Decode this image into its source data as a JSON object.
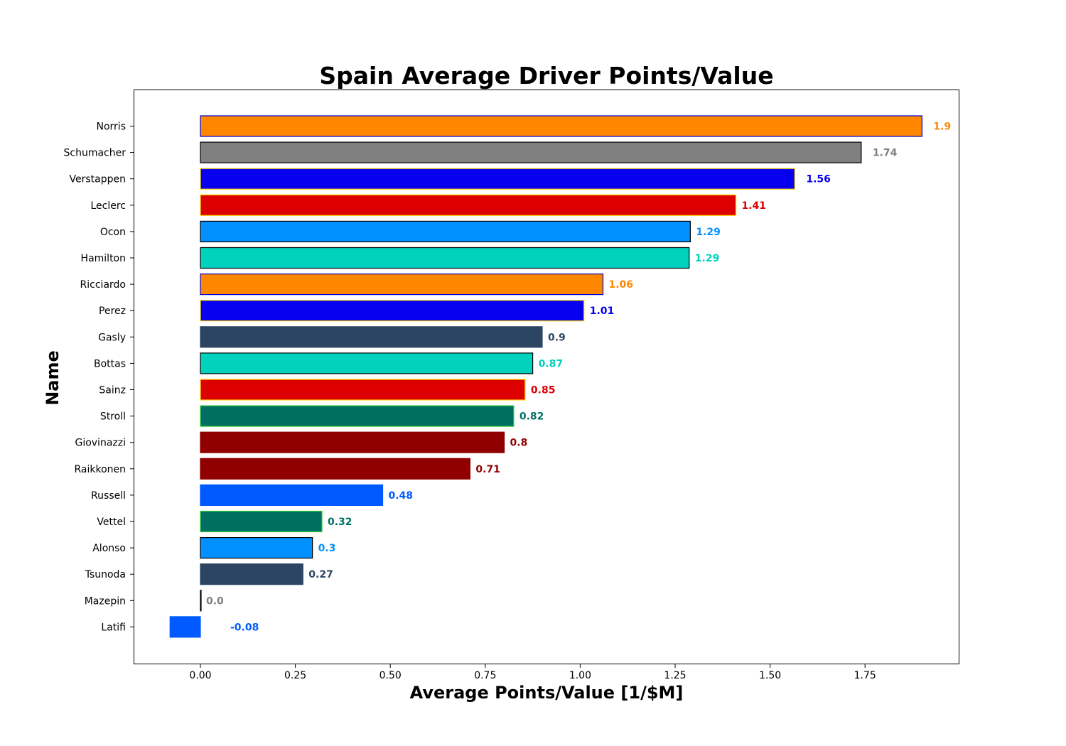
{
  "chart_data": {
    "type": "bar",
    "orientation": "horizontal",
    "title": "Spain Average Driver Points/Value",
    "xlabel": "Average Points/Value [1/$M]",
    "ylabel": "Name",
    "xlim": [
      -0.175,
      1.995
    ],
    "xticks": [
      "0.00",
      "0.25",
      "0.50",
      "0.75",
      "1.00",
      "1.25",
      "1.50",
      "1.75"
    ],
    "xtick_values": [
      0,
      0.25,
      0.5,
      0.75,
      1.0,
      1.25,
      1.5,
      1.75
    ],
    "grid": false,
    "bars": [
      {
        "name": "Norris",
        "value": 1.9,
        "label": "1.9",
        "fill": "#FF8700",
        "edge": "#0000CC",
        "text_color": "#FF8700"
      },
      {
        "name": "Schumacher",
        "value": 1.74,
        "label": "1.74",
        "fill": "#808080",
        "edge": "#000000",
        "text_color": "#808080"
      },
      {
        "name": "Verstappen",
        "value": 1.565,
        "label": "1.56",
        "fill": "#0600EF",
        "edge": "#FFD700",
        "text_color": "#0600EF"
      },
      {
        "name": "Leclerc",
        "value": 1.41,
        "label": "1.41",
        "fill": "#DC0000",
        "edge": "#FFD700",
        "text_color": "#DC0000"
      },
      {
        "name": "Ocon",
        "value": 1.29,
        "label": "1.29",
        "fill": "#0090FF",
        "edge": "#000000",
        "text_color": "#0090FF"
      },
      {
        "name": "Hamilton",
        "value": 1.287,
        "label": "1.29",
        "fill": "#00D2BE",
        "edge": "#000000",
        "text_color": "#00D2BE"
      },
      {
        "name": "Ricciardo",
        "value": 1.06,
        "label": "1.06",
        "fill": "#FF8700",
        "edge": "#0000CC",
        "text_color": "#FF8700"
      },
      {
        "name": "Perez",
        "value": 1.01,
        "label": "1.01",
        "fill": "#0600EF",
        "edge": "#FFD700",
        "text_color": "#0600EF"
      },
      {
        "name": "Gasly",
        "value": 0.9,
        "label": "0.9",
        "fill": "#2B4562",
        "edge": "#2B4562",
        "text_color": "#2B4562"
      },
      {
        "name": "Bottas",
        "value": 0.875,
        "label": "0.87",
        "fill": "#00D2BE",
        "edge": "#000000",
        "text_color": "#00D2BE"
      },
      {
        "name": "Sainz",
        "value": 0.855,
        "label": "0.85",
        "fill": "#DC0000",
        "edge": "#FFD700",
        "text_color": "#DC0000"
      },
      {
        "name": "Stroll",
        "value": 0.825,
        "label": "0.82",
        "fill": "#006F62",
        "edge": "#33CC33",
        "text_color": "#006F62"
      },
      {
        "name": "Giovinazzi",
        "value": 0.8,
        "label": "0.8",
        "fill": "#900000",
        "edge": "#900000",
        "text_color": "#900000"
      },
      {
        "name": "Raikkonen",
        "value": 0.71,
        "label": "0.71",
        "fill": "#900000",
        "edge": "#900000",
        "text_color": "#900000"
      },
      {
        "name": "Russell",
        "value": 0.48,
        "label": "0.48",
        "fill": "#005AFF",
        "edge": "#005AFF",
        "text_color": "#005AFF"
      },
      {
        "name": "Vettel",
        "value": 0.32,
        "label": "0.32",
        "fill": "#006F62",
        "edge": "#33CC33",
        "text_color": "#006F62"
      },
      {
        "name": "Alonso",
        "value": 0.295,
        "label": "0.3",
        "fill": "#0090FF",
        "edge": "#000000",
        "text_color": "#0090FF"
      },
      {
        "name": "Tsunoda",
        "value": 0.27,
        "label": "0.27",
        "fill": "#2B4562",
        "edge": "#2B4562",
        "text_color": "#2B4562"
      },
      {
        "name": "Mazepin",
        "value": 0.0,
        "label": "0.0",
        "fill": "#808080",
        "edge": "#000000",
        "text_color": "#808080"
      },
      {
        "name": "Latifi",
        "value": -0.08,
        "label": "-0.08",
        "fill": "#005AFF",
        "edge": "#005AFF",
        "text_color": "#005AFF"
      }
    ]
  }
}
